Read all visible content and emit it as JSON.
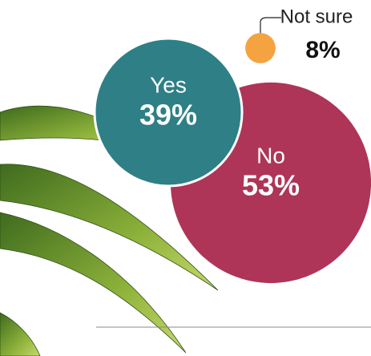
{
  "chart_data": {
    "type": "bubble",
    "categories": [
      "Yes",
      "No",
      "Not sure"
    ],
    "values": [
      39,
      53,
      8
    ],
    "value_labels": [
      "39%",
      "53%",
      "8%"
    ],
    "colors": [
      "#2e7f86",
      "#ae3558",
      "#f4a340"
    ]
  }
}
